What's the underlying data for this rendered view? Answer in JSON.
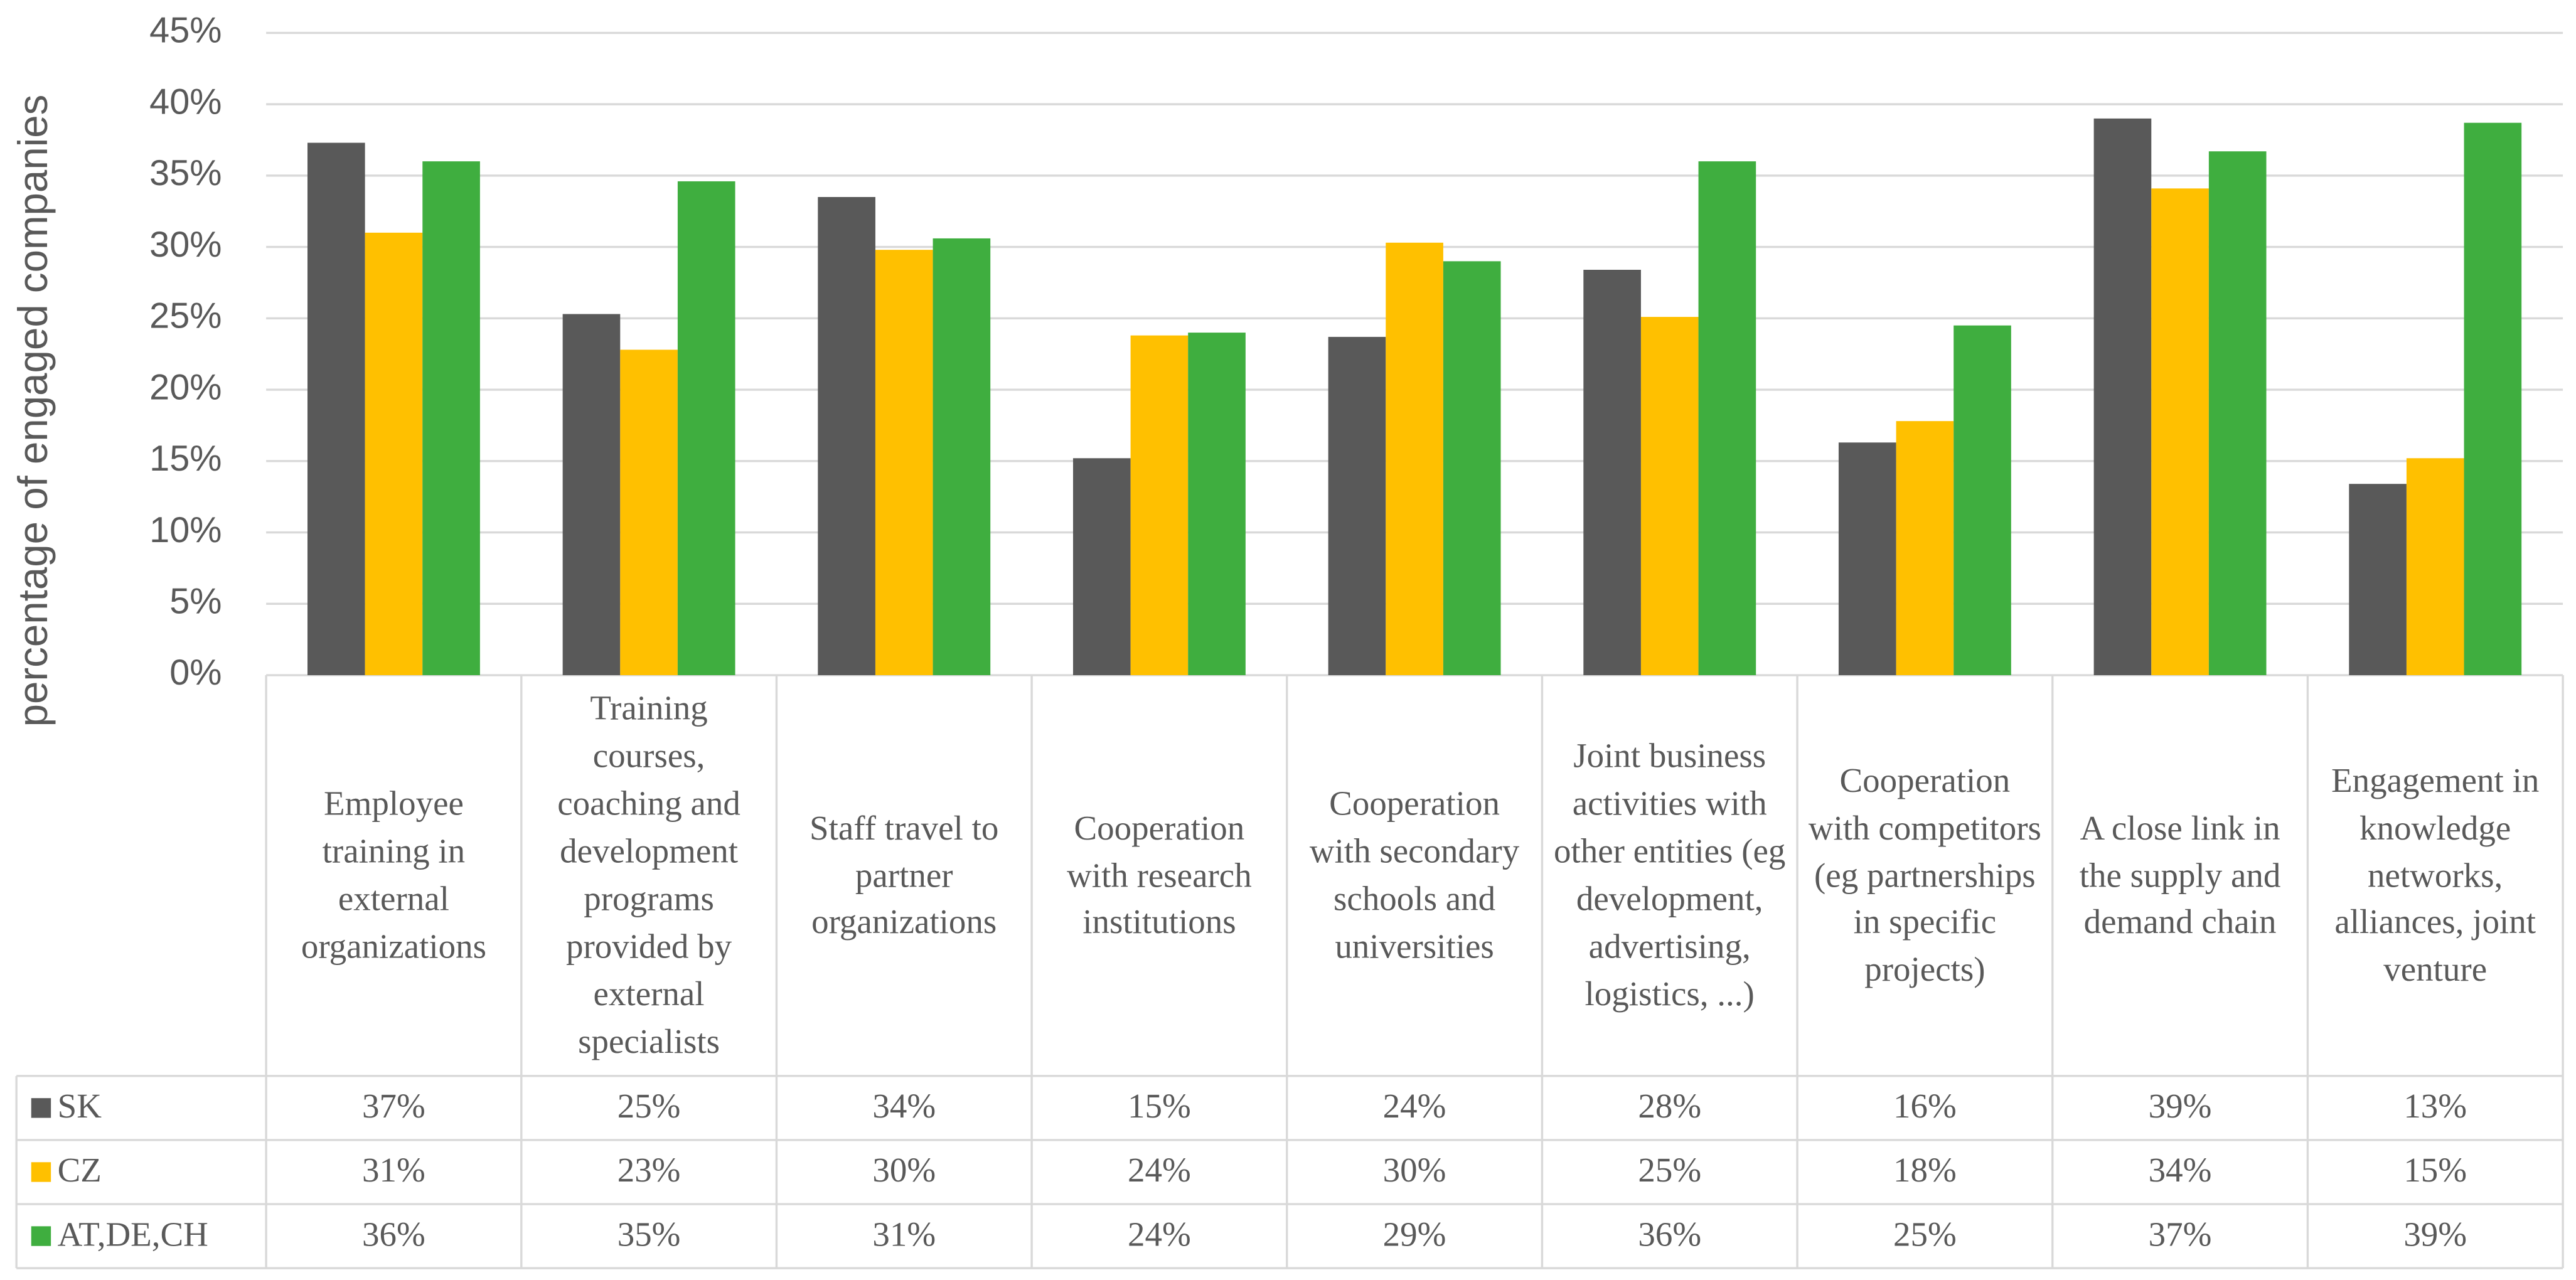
{
  "chart_data": {
    "type": "bar",
    "y_label": "percentage of engaged companies",
    "categories": [
      "Employee training in external organizations",
      "Training courses, coaching and development programs provided by external specialists",
      "Staff travel to partner organizations",
      "Cooperation with research institutions",
      "Cooperation with secondary schools and universities",
      "Joint business activities with other entities (eg development, advertising, logistics, ...)",
      "Cooperation with competitors (eg partnerships in specific projects)",
      "A close link in the supply and demand chain",
      "Engagement in knowledge networks, alliances, joint venture"
    ],
    "series": [
      {
        "name": "SK",
        "color": "#595959",
        "values": [
          37.3,
          25.3,
          33.5,
          15.2,
          23.7,
          28.4,
          16.3,
          39.0,
          13.4
        ],
        "value_labels": [
          "37%",
          "25%",
          "34%",
          "15%",
          "24%",
          "28%",
          "16%",
          "39%",
          "13%"
        ]
      },
      {
        "name": "CZ",
        "color": "#ffc000",
        "values": [
          31.0,
          22.8,
          29.8,
          23.8,
          30.3,
          25.1,
          17.8,
          34.1,
          15.2
        ],
        "value_labels": [
          "31%",
          "23%",
          "30%",
          "24%",
          "30%",
          "25%",
          "18%",
          "34%",
          "15%"
        ]
      },
      {
        "name": "AT,DE,CH",
        "color": "#3fae3f",
        "values": [
          36.0,
          34.6,
          30.6,
          24.0,
          29.0,
          36.0,
          24.5,
          36.7,
          38.7
        ],
        "value_labels": [
          "36%",
          "35%",
          "31%",
          "24%",
          "29%",
          "36%",
          "25%",
          "37%",
          "39%"
        ]
      }
    ],
    "ylim": [
      0,
      45
    ],
    "yticks": [
      {
        "value": 0,
        "label": "0%"
      },
      {
        "value": 5,
        "label": "5%"
      },
      {
        "value": 10,
        "label": "10%"
      },
      {
        "value": 15,
        "label": "15%"
      },
      {
        "value": 20,
        "label": "20%"
      },
      {
        "value": 25,
        "label": "25%"
      },
      {
        "value": 30,
        "label": "30%"
      },
      {
        "value": 35,
        "label": "35%"
      },
      {
        "value": 40,
        "label": "40%"
      },
      {
        "value": 45,
        "label": "45%"
      }
    ],
    "grid": true
  }
}
